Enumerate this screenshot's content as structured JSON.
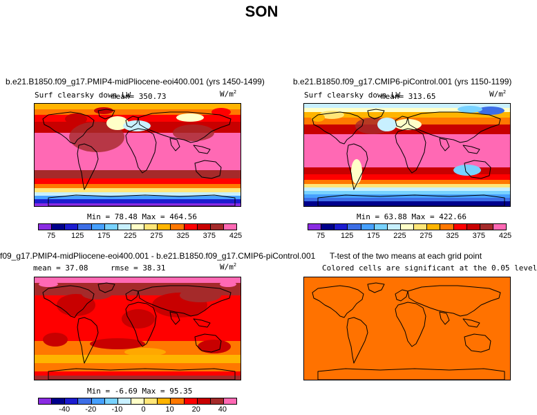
{
  "chart_data": {
    "type": "heatmap",
    "title": "SON",
    "colors": {
      "abs": [
        "#8a2be2",
        "#00008b",
        "#1c1ccf",
        "#3c6ee6",
        "#46a0ff",
        "#78d2ff",
        "#c8f0ff",
        "#ffffc8",
        "#ffe678",
        "#ffb400",
        "#ff7800",
        "#ff0000",
        "#c80000",
        "#a52a2a",
        "#ff69b4"
      ],
      "diff": [
        "#8a2be2",
        "#00008b",
        "#1c1ccf",
        "#3c6ee6",
        "#46a0ff",
        "#78d2ff",
        "#c8f0ff",
        "#ffffc8",
        "#ffe678",
        "#ffb400",
        "#ff7800",
        "#ff0000",
        "#c80000",
        "#a52a2a",
        "#ff69b4"
      ],
      "ttest": "#ff7200"
    },
    "panels": [
      {
        "title": "b.e21.B1850.f09_g17.PMIP4-midPliocene-eoi400.001 (yrs 1450-1499)",
        "variable": "Surf clearsky down LW",
        "stat_label": "mean=",
        "stat_value": "350.73",
        "units": "W/m",
        "units_sup": "2",
        "minmax": "Min =  78.48 Max = 464.56",
        "tick_labels": [
          "75",
          "125",
          "175",
          "225",
          "275",
          "325",
          "375",
          "425"
        ]
      },
      {
        "title": "b.e21.B1850.f09_g17.CMIP6-piControl.001 (yrs 1150-1199)",
        "variable": "Surf clearsky down LW",
        "stat_label": "mean=",
        "stat_value": "313.65",
        "units": "W/m",
        "units_sup": "2",
        "minmax": "Min =  63.88 Max = 422.66",
        "tick_labels": [
          "75",
          "125",
          "175",
          "225",
          "275",
          "325",
          "375",
          "425"
        ]
      },
      {
        "title": "f09_g17.PMIP4-midPliocene-eoi400.001 - b.e21.B1850.f09_g17.CMIP6-piControl.001",
        "mean_text": "mean =  37.08",
        "rmse_text": "rmse =  38.31",
        "units": "W/m",
        "units_sup": "2",
        "minmax": "Min =  -6.69 Max =  95.35",
        "tick_labels": [
          "-40",
          "-20",
          "-10",
          "0",
          "10",
          "20",
          "40"
        ]
      },
      {
        "title": "T-test of the two means at each grid point",
        "subtitle": "Colored cells are significant at the 0.05 level"
      }
    ]
  }
}
